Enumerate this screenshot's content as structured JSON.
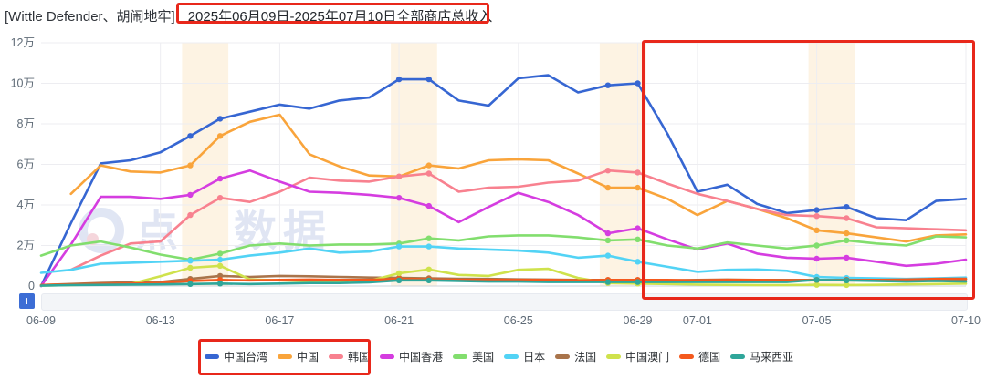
{
  "title": {
    "prefix": "[Wittle Defender、胡闹地牢]",
    "range": "2025年06月09日-2025年07月10日全部商店总收入"
  },
  "toolbar": {
    "add_button": "+"
  },
  "watermark": {
    "text": "点点数据"
  },
  "axes": {
    "y_ticks": [
      "0",
      "2万",
      "4万",
      "6万",
      "8万",
      "10万",
      "12万"
    ],
    "x_ticks": [
      {
        "label": "06-09",
        "index": 0
      },
      {
        "label": "06-13",
        "index": 4
      },
      {
        "label": "06-17",
        "index": 8
      },
      {
        "label": "06-21",
        "index": 12
      },
      {
        "label": "06-25",
        "index": 16
      },
      {
        "label": "06-29",
        "index": 20
      },
      {
        "label": "07-01",
        "index": 22
      },
      {
        "label": "07-05",
        "index": 26
      },
      {
        "label": "07-10",
        "index": 31
      }
    ]
  },
  "legend": {
    "items": [
      {
        "label": "中国台湾",
        "color": "#3666d2"
      },
      {
        "label": "中国",
        "color": "#f9a43b"
      },
      {
        "label": "韩国",
        "color": "#f8818f"
      },
      {
        "label": "中国香港",
        "color": "#d53de0"
      },
      {
        "label": "美国",
        "color": "#82de6e"
      },
      {
        "label": "日本",
        "color": "#52d3f5"
      },
      {
        "label": "法国",
        "color": "#a9744b"
      },
      {
        "label": "中国澳门",
        "color": "#cfe24c"
      },
      {
        "label": "德国",
        "color": "#f4591d"
      },
      {
        "label": "马来西亚",
        "color": "#2fa69a"
      }
    ]
  },
  "chart_data": {
    "type": "line",
    "title": "2025年06月09日-2025年07月10日全部商店总收入",
    "unit": "万",
    "ylim": [
      0,
      12
    ],
    "grid": true,
    "legend_position": "bottom",
    "x": [
      "06-09",
      "06-10",
      "06-11",
      "06-12",
      "06-13",
      "06-14",
      "06-15",
      "06-16",
      "06-17",
      "06-18",
      "06-19",
      "06-20",
      "06-21",
      "06-22",
      "06-23",
      "06-24",
      "06-25",
      "06-26",
      "06-27",
      "06-28",
      "06-29",
      "06-30",
      "07-01",
      "07-02",
      "07-03",
      "07-04",
      "07-05",
      "07-06",
      "07-07",
      "07-08",
      "07-09",
      "07-10"
    ],
    "weekend_highlight_pairs": [
      [
        5,
        6
      ],
      [
        12,
        13
      ],
      [
        19,
        20
      ],
      [
        26,
        27
      ]
    ],
    "series": [
      {
        "name": "中国台湾",
        "color": "#3666d2",
        "values": [
          0,
          3.1,
          6.05,
          6.2,
          6.6,
          7.4,
          8.25,
          8.6,
          8.95,
          8.75,
          9.15,
          9.3,
          10.2,
          10.2,
          9.15,
          8.9,
          10.25,
          10.4,
          9.55,
          9.9,
          10.0,
          7.5,
          4.65,
          5.0,
          4.05,
          3.6,
          3.75,
          3.9,
          3.35,
          3.25,
          4.2,
          4.3
        ]
      },
      {
        "name": "中国",
        "color": "#f9a43b",
        "values": [
          null,
          4.55,
          5.95,
          5.65,
          5.6,
          5.95,
          7.4,
          8.1,
          8.45,
          6.5,
          5.9,
          5.45,
          5.4,
          5.95,
          5.8,
          6.2,
          6.25,
          6.2,
          5.55,
          4.85,
          4.85,
          4.3,
          3.5,
          4.2,
          3.8,
          3.35,
          2.75,
          2.6,
          2.4,
          2.2,
          2.5,
          2.55
        ]
      },
      {
        "name": "韩国",
        "color": "#f8818f",
        "values": [
          null,
          0.8,
          1.5,
          2.1,
          2.2,
          3.5,
          4.35,
          4.15,
          4.65,
          5.35,
          5.2,
          5.15,
          5.4,
          5.55,
          4.65,
          4.85,
          4.9,
          5.1,
          5.2,
          5.7,
          5.6,
          5.05,
          4.55,
          4.2,
          3.8,
          3.5,
          3.45,
          3.35,
          2.9,
          2.85,
          2.8,
          2.75
        ]
      },
      {
        "name": "中国香港",
        "color": "#d53de0",
        "values": [
          0,
          2.05,
          4.4,
          4.4,
          4.3,
          4.5,
          5.3,
          5.7,
          5.15,
          4.65,
          4.6,
          4.5,
          4.35,
          3.95,
          3.15,
          3.9,
          4.6,
          4.15,
          3.5,
          2.6,
          2.85,
          2.3,
          1.8,
          2.1,
          1.6,
          1.4,
          1.35,
          1.4,
          1.2,
          1.0,
          1.1,
          1.3
        ]
      },
      {
        "name": "美国",
        "color": "#82de6e",
        "values": [
          1.5,
          2.0,
          2.2,
          1.9,
          1.55,
          1.3,
          1.6,
          2.0,
          2.1,
          2.0,
          2.05,
          2.05,
          2.1,
          2.35,
          2.25,
          2.45,
          2.5,
          2.5,
          2.4,
          2.25,
          2.3,
          2.0,
          1.85,
          2.15,
          2.0,
          1.85,
          2.0,
          2.25,
          2.1,
          2.0,
          2.45,
          2.4
        ]
      },
      {
        "name": "日本",
        "color": "#52d3f5",
        "values": [
          0.65,
          0.8,
          1.1,
          1.15,
          1.2,
          1.25,
          1.3,
          1.5,
          1.65,
          1.85,
          1.65,
          1.7,
          1.95,
          1.95,
          1.85,
          1.8,
          1.75,
          1.65,
          1.4,
          1.5,
          1.2,
          0.95,
          0.7,
          0.8,
          0.82,
          0.75,
          0.45,
          0.4,
          0.38,
          0.35,
          0.38,
          0.42
        ]
      },
      {
        "name": "法国",
        "color": "#a9744b",
        "values": [
          0.05,
          0.1,
          0.15,
          0.18,
          0.2,
          0.35,
          0.5,
          0.45,
          0.5,
          0.48,
          0.45,
          0.42,
          0.4,
          0.38,
          0.36,
          0.35,
          0.33,
          0.32,
          0.3,
          0.3,
          0.3,
          0.28,
          0.3,
          0.32,
          0.3,
          0.3,
          0.3,
          0.3,
          0.3,
          0.3,
          0.32,
          0.33
        ]
      },
      {
        "name": "中国澳门",
        "color": "#cfe24c",
        "values": [
          0.02,
          0.05,
          0.08,
          0.1,
          0.48,
          0.9,
          1.0,
          0.33,
          0.28,
          0.25,
          0.22,
          0.25,
          0.63,
          0.82,
          0.55,
          0.5,
          0.8,
          0.85,
          0.4,
          0.15,
          0.12,
          0.1,
          0.07,
          0.06,
          0.05,
          0.05,
          0.06,
          0.05,
          0.06,
          0.08,
          0.1,
          0.12
        ]
      },
      {
        "name": "德国",
        "color": "#f4591d",
        "values": [
          0.05,
          0.08,
          0.1,
          0.12,
          0.15,
          0.25,
          0.3,
          0.28,
          0.3,
          0.32,
          0.3,
          0.3,
          0.35,
          0.33,
          0.3,
          0.3,
          0.3,
          0.3,
          0.28,
          0.3,
          0.3,
          0.3,
          0.28,
          0.3,
          0.3,
          0.28,
          0.3,
          0.3,
          0.3,
          0.32,
          0.35,
          0.36
        ]
      },
      {
        "name": "马来西亚",
        "color": "#2fa69a",
        "values": [
          0.02,
          0.05,
          0.06,
          0.07,
          0.08,
          0.1,
          0.12,
          0.1,
          0.12,
          0.15,
          0.15,
          0.18,
          0.28,
          0.28,
          0.25,
          0.22,
          0.22,
          0.2,
          0.2,
          0.2,
          0.2,
          0.2,
          0.2,
          0.2,
          0.2,
          0.2,
          0.3,
          0.28,
          0.25,
          0.22,
          0.25,
          0.22
        ]
      }
    ]
  },
  "colors": {
    "red_annotation": "#e8281b",
    "weekend_band": "#fdf3e3",
    "grid": "#ededf1",
    "axis_line": "#ced3da",
    "tick_text": "#5f6b77"
  }
}
